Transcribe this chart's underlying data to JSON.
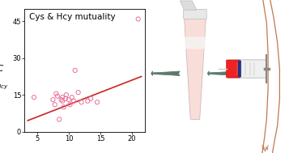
{
  "scatter_x": [
    4.5,
    7.5,
    7.8,
    8.0,
    8.2,
    8.5,
    8.8,
    9.0,
    9.0,
    9.2,
    9.5,
    9.6,
    10.0,
    10.2,
    10.5,
    10.8,
    11.0,
    11.5,
    12.0,
    13.0,
    13.5,
    14.5,
    21.0
  ],
  "scatter_y": [
    14.0,
    13.0,
    11.0,
    15.5,
    14.5,
    5.0,
    13.0,
    12.5,
    14.0,
    10.0,
    13.5,
    15.0,
    13.0,
    11.0,
    14.0,
    12.5,
    25.0,
    16.0,
    12.0,
    12.5,
    13.5,
    12.0,
    46.0
  ],
  "line_x": [
    3.5,
    21.5
  ],
  "line_y": [
    4.5,
    22.5
  ],
  "marker_edge_color": "#e87099",
  "line_color": "#cc2222",
  "title": "Cys & Hcy mutuality",
  "xlim": [
    3,
    22
  ],
  "ylim": [
    0,
    50
  ],
  "xticks": [
    5,
    10,
    15,
    20
  ],
  "yticks": [
    0,
    15,
    30,
    45
  ],
  "title_fontsize": 7.5,
  "tick_fontsize": 6,
  "marker_size": 14,
  "line_width": 1.2,
  "arrow_color": "#5a7a6a",
  "tube_fill": "#f9ddd8",
  "tube_edge": "#ccbbbb",
  "cap_fill": "#e8e8e8",
  "arm_edge": "#c07850",
  "syringe_red": "#ee2222",
  "syringe_dark": "#223388"
}
